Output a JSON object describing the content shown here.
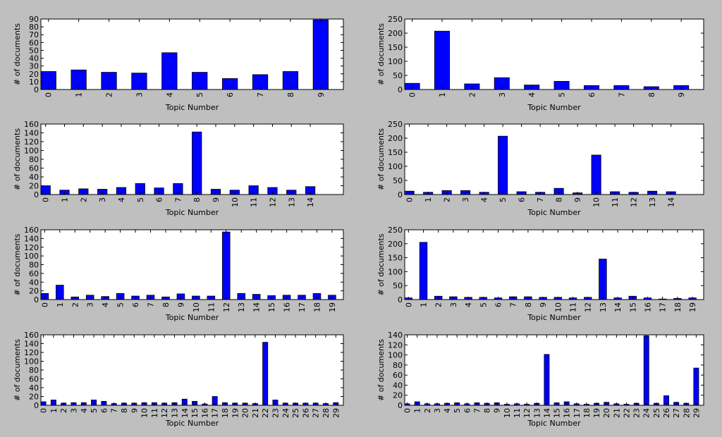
{
  "chart_data": [
    {
      "type": "bar",
      "xlabel": "Topic Number",
      "ylabel": "# of documents",
      "color": "#0000ff",
      "categories": [
        "0",
        "1",
        "2",
        "3",
        "4",
        "5",
        "6",
        "7",
        "8",
        "9"
      ],
      "values": [
        23,
        25,
        22,
        21,
        47,
        22,
        14,
        19,
        23,
        89
      ],
      "xlim": [
        -0.25,
        9.75
      ],
      "ylim": [
        0,
        90
      ],
      "yticks": [
        0,
        10,
        20,
        30,
        40,
        50,
        60,
        70,
        80,
        90
      ]
    },
    {
      "type": "bar",
      "xlabel": "Topic Number",
      "ylabel": "# of documents",
      "color": "#0000ff",
      "categories": [
        "0",
        "1",
        "2",
        "3",
        "4",
        "5",
        "6",
        "7",
        "8",
        "9"
      ],
      "values": [
        22,
        207,
        20,
        42,
        16,
        29,
        14,
        14,
        10,
        14
      ],
      "xlim": [
        -0.25,
        9.75
      ],
      "ylim": [
        0,
        250
      ],
      "yticks": [
        0,
        50,
        100,
        150,
        200,
        250
      ]
    },
    {
      "type": "bar",
      "xlabel": "Topic Number",
      "ylabel": "# of documents",
      "color": "#0000ff",
      "categories": [
        "0",
        "1",
        "2",
        "3",
        "4",
        "5",
        "6",
        "7",
        "8",
        "9",
        "10",
        "11",
        "12",
        "13",
        "14"
      ],
      "values": [
        20,
        10,
        13,
        12,
        16,
        25,
        15,
        25,
        142,
        12,
        10,
        20,
        16,
        10,
        18
      ],
      "xlim": [
        -0.25,
        15.75
      ],
      "ylim": [
        0,
        160
      ],
      "yticks": [
        0,
        20,
        40,
        60,
        80,
        100,
        120,
        140,
        160
      ]
    },
    {
      "type": "bar",
      "xlabel": "Topic Number",
      "ylabel": "# of documents",
      "color": "#0000ff",
      "categories": [
        "0",
        "1",
        "2",
        "3",
        "4",
        "5",
        "6",
        "7",
        "8",
        "9",
        "10",
        "11",
        "12",
        "13",
        "14"
      ],
      "values": [
        12,
        8,
        14,
        14,
        8,
        207,
        10,
        8,
        22,
        6,
        140,
        10,
        8,
        12,
        10
      ],
      "xlim": [
        -0.25,
        15.75
      ],
      "ylim": [
        0,
        250
      ],
      "yticks": [
        0,
        50,
        100,
        150,
        200,
        250
      ]
    },
    {
      "type": "bar",
      "xlabel": "Topic Number",
      "ylabel": "# of documents",
      "color": "#0000ff",
      "categories": [
        "0",
        "1",
        "2",
        "3",
        "4",
        "5",
        "6",
        "7",
        "8",
        "9",
        "10",
        "11",
        "12",
        "13",
        "14",
        "15",
        "16",
        "17",
        "18",
        "19"
      ],
      "values": [
        14,
        33,
        6,
        10,
        7,
        14,
        8,
        10,
        6,
        13,
        8,
        8,
        155,
        14,
        12,
        9,
        10,
        10,
        14,
        10
      ],
      "xlim": [
        -0.25,
        19.75
      ],
      "ylim": [
        0,
        160
      ],
      "yticks": [
        0,
        20,
        40,
        60,
        80,
        100,
        120,
        140,
        160
      ]
    },
    {
      "type": "bar",
      "xlabel": "Topic Number",
      "ylabel": "# of documents",
      "color": "#0000ff",
      "categories": [
        "0",
        "1",
        "2",
        "3",
        "4",
        "5",
        "6",
        "7",
        "8",
        "9",
        "10",
        "11",
        "12",
        "13",
        "14",
        "15",
        "16",
        "17",
        "18",
        "19"
      ],
      "values": [
        6,
        205,
        12,
        10,
        8,
        8,
        6,
        10,
        10,
        8,
        8,
        6,
        8,
        145,
        6,
        12,
        6,
        2,
        4,
        6
      ],
      "xlim": [
        -0.25,
        19.75
      ],
      "ylim": [
        0,
        250
      ],
      "yticks": [
        0,
        50,
        100,
        150,
        200,
        250
      ]
    },
    {
      "type": "bar",
      "xlabel": "Topic Number",
      "ylabel": "# of documents",
      "color": "#0000ff",
      "categories": [
        "0",
        "1",
        "2",
        "3",
        "4",
        "5",
        "6",
        "7",
        "8",
        "9",
        "10",
        "11",
        "12",
        "13",
        "14",
        "15",
        "16",
        "17",
        "18",
        "19",
        "20",
        "21",
        "22",
        "23",
        "24",
        "25",
        "26",
        "27",
        "28",
        "29"
      ],
      "values": [
        8,
        12,
        5,
        6,
        6,
        12,
        9,
        4,
        5,
        5,
        6,
        6,
        5,
        6,
        14,
        9,
        3,
        20,
        6,
        5,
        5,
        4,
        143,
        12,
        5,
        5,
        5,
        5,
        4,
        6
      ],
      "xlim": [
        -0.25,
        29.75
      ],
      "ylim": [
        0,
        160
      ],
      "yticks": [
        0,
        20,
        40,
        60,
        80,
        100,
        120,
        140,
        160
      ]
    },
    {
      "type": "bar",
      "xlabel": "Topic Number",
      "ylabel": "# of documents",
      "color": "#0000ff",
      "categories": [
        "0",
        "1",
        "2",
        "3",
        "4",
        "5",
        "6",
        "7",
        "8",
        "9",
        "10",
        "11",
        "12",
        "13",
        "14",
        "15",
        "16",
        "17",
        "18",
        "19",
        "20",
        "21",
        "22",
        "23",
        "24",
        "25",
        "26",
        "27",
        "28",
        "29"
      ],
      "values": [
        3,
        7,
        3,
        3,
        4,
        5,
        3,
        5,
        4,
        5,
        2,
        3,
        2,
        4,
        101,
        5,
        7,
        3,
        2,
        4,
        6,
        3,
        2,
        4,
        138,
        4,
        19,
        6,
        4,
        74
      ],
      "xlim": [
        -0.25,
        29.75
      ],
      "ylim": [
        0,
        140
      ],
      "yticks": [
        0,
        20,
        40,
        60,
        80,
        100,
        120,
        140
      ]
    }
  ]
}
